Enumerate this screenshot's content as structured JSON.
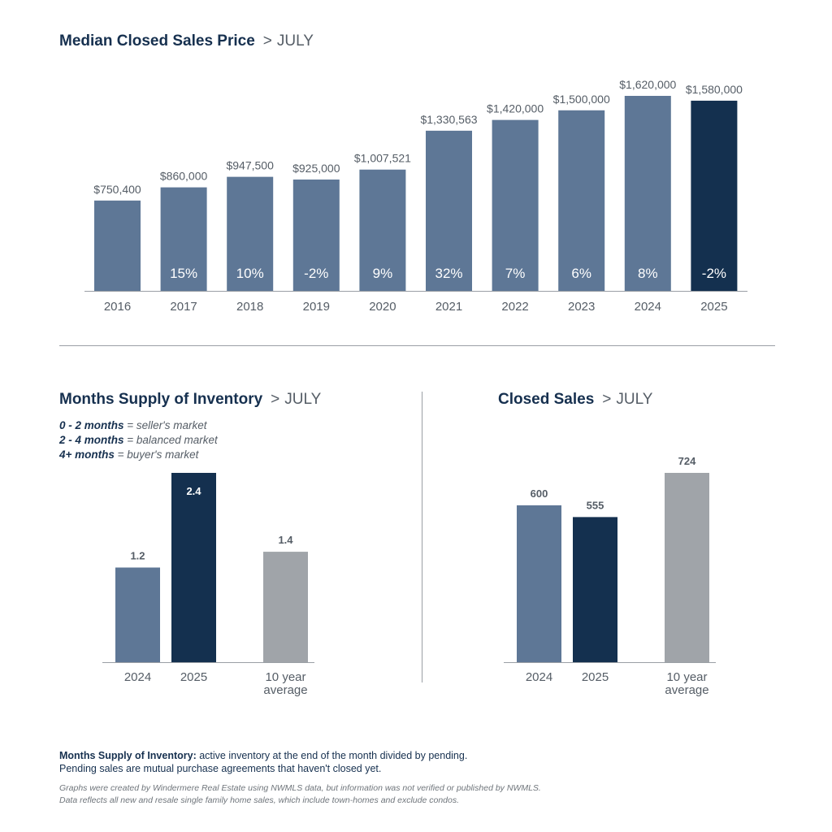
{
  "colors": {
    "prior_bar": "#5e7796",
    "current_bar": "#14304f",
    "average_bar": "#a0a4a9",
    "title": "#16304f",
    "label": "#555d66",
    "axis": "#9a9fa5"
  },
  "median_price": {
    "title": "Median Closed Sales Price",
    "separator": ">",
    "month": "JULY"
  },
  "months_supply": {
    "title": "Months Supply of Inventory",
    "separator": ">",
    "month": "JULY",
    "legend": [
      {
        "range": "0 - 2 months",
        "desc": "= seller's market"
      },
      {
        "range": "2 - 4 months",
        "desc": "= balanced market"
      },
      {
        "range": "4+ months",
        "desc": "= buyer's market"
      }
    ]
  },
  "closed_sales": {
    "title": "Closed Sales",
    "separator": ">",
    "month": "JULY"
  },
  "footnote": {
    "term": "Months Supply of Inventory:",
    "line1": "active inventory at the end of the month divided by pending.",
    "line2": "Pending sales are mutual purchase agreements that haven't closed yet."
  },
  "source": {
    "line1": "Graphs were created by Windermere Real Estate using NWMLS data, but information was not verified or published by NWMLS.",
    "line2": "Data reflects all new and resale single family home sales, which include town-homes and exclude condos."
  },
  "chart_data": [
    {
      "type": "bar",
      "title": "Median Closed Sales Price",
      "categories": [
        "2016",
        "2017",
        "2018",
        "2019",
        "2020",
        "2021",
        "2022",
        "2023",
        "2024",
        "2025"
      ],
      "values": [
        750400,
        860000,
        947500,
        925000,
        1007521,
        1330563,
        1420000,
        1500000,
        1620000,
        1580000
      ],
      "value_labels": [
        "$750,400",
        "$860,000",
        "$947,500",
        "$925,000",
        "$1,007,521",
        "$1,330,563",
        "$1,420,000",
        "$1,500,000",
        "$1,620,000",
        "$1,580,000"
      ],
      "pct_labels": [
        "",
        "15%",
        "10%",
        "-2%",
        "9%",
        "32%",
        "7%",
        "6%",
        "8%",
        "-2%"
      ],
      "ylim": [
        0,
        1620000
      ],
      "grid": false,
      "highlight_index": 9
    },
    {
      "type": "bar",
      "title": "Months Supply of Inventory",
      "categories": [
        "2024",
        "2025",
        "10 year average"
      ],
      "category_lines": [
        [
          "2024"
        ],
        [
          "2025"
        ],
        [
          "10 year",
          "average"
        ]
      ],
      "values": [
        1.2,
        2.4,
        1.4
      ],
      "value_labels": [
        "1.2",
        "2.4",
        "1.4"
      ],
      "ylim": [
        0,
        2.4
      ],
      "grid": false
    },
    {
      "type": "bar",
      "title": "Closed Sales",
      "categories": [
        "2024",
        "2025",
        "10 year average"
      ],
      "category_lines": [
        [
          "2024"
        ],
        [
          "2025"
        ],
        [
          "10 year",
          "average"
        ]
      ],
      "values": [
        600,
        555,
        724
      ],
      "value_labels": [
        "600",
        "555",
        "724"
      ],
      "ylim": [
        0,
        724
      ],
      "grid": false
    }
  ]
}
